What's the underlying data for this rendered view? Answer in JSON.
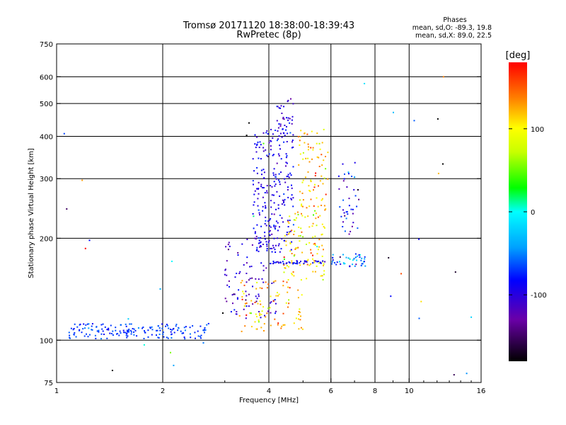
{
  "chart_data": {
    "type": "scatter",
    "title": "Tromsø 20171120 18:38:00-18:39:43",
    "subtitle": "RwPretec (8p)",
    "xlabel": "Frequency [MHz]",
    "ylabel": "Stationary phase Virtual Height [km]",
    "x_scale": "log",
    "y_scale": "log",
    "xlim": [
      1,
      16
    ],
    "ylim": [
      75,
      750
    ],
    "x_ticks": [
      1,
      2,
      4,
      6,
      8,
      10,
      16
    ],
    "y_ticks": [
      75,
      100,
      200,
      300,
      400,
      500,
      600,
      750
    ],
    "grid": true,
    "info": {
      "header": "Phases",
      "line1": "mean, sd,O: -89.3, 19.8",
      "line2": "mean, sd,X:  89.0, 22.5"
    },
    "colorbar": {
      "unit": "[deg]",
      "range": [
        -180,
        180
      ],
      "ticks": [
        -100,
        0,
        100
      ]
    },
    "groups": [
      {
        "fmin": 1.08,
        "fmax": 2.7,
        "hmin": 101,
        "hmax": 112,
        "phase_mean": -70,
        "phase_sd": 10,
        "count": 170
      },
      {
        "fmin": 3.0,
        "fmax": 4.2,
        "hmin": 115,
        "hmax": 200,
        "phase_mean": -110,
        "phase_sd": 15,
        "count": 90
      },
      {
        "fmin": 3.6,
        "fmax": 4.7,
        "hmin": 180,
        "hmax": 420,
        "phase_mean": -95,
        "phase_sd": 15,
        "count": 240
      },
      {
        "fmin": 4.2,
        "fmax": 4.7,
        "hmin": 420,
        "hmax": 520,
        "phase_mean": -110,
        "phase_sd": 15,
        "count": 30
      },
      {
        "fmin": 3.3,
        "fmax": 5.0,
        "hmin": 106,
        "hmax": 150,
        "phase_mean": 120,
        "phase_sd": 25,
        "count": 90
      },
      {
        "fmin": 4.4,
        "fmax": 5.8,
        "hmin": 150,
        "hmax": 240,
        "phase_mean": 100,
        "phase_sd": 25,
        "count": 110
      },
      {
        "fmin": 4.8,
        "fmax": 5.9,
        "hmin": 240,
        "hmax": 420,
        "phase_mean": 115,
        "phase_sd": 25,
        "count": 80
      },
      {
        "fmin": 4.0,
        "fmax": 5.8,
        "hmin": 168,
        "hmax": 172,
        "phase_mean": -90,
        "phase_sd": 10,
        "count": 45
      },
      {
        "fmin": 6.0,
        "fmax": 7.6,
        "hmin": 165,
        "hmax": 180,
        "phase_mean": -50,
        "phase_sd": 30,
        "count": 45
      },
      {
        "fmin": 6.3,
        "fmax": 7.2,
        "hmin": 200,
        "hmax": 340,
        "phase_mean": -100,
        "phase_sd": 40,
        "count": 40
      },
      {
        "fmin": 1.0,
        "fmax": 16.0,
        "hmin": 75,
        "hmax": 620,
        "phase_mean": -20,
        "phase_sd": 120,
        "count": 40
      }
    ]
  }
}
